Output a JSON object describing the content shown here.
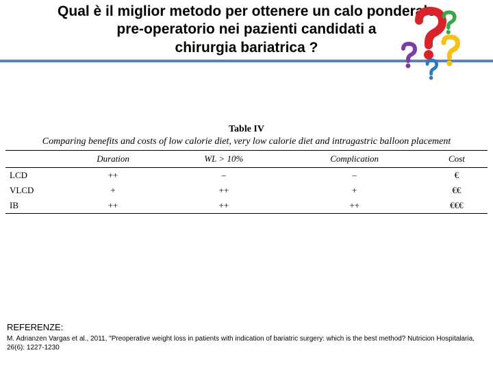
{
  "title": {
    "line1": "Qual è il miglior metodo per ottenere un calo ponderale",
    "line2": "pre-operatorio  nei pazienti candidati a",
    "line3": "chirurgia bariatrica ?"
  },
  "colors": {
    "hr": "#5a82bc",
    "q_red": "#d8232a",
    "q_purple": "#7b3fa1",
    "q_yellow": "#f5c116",
    "q_blue": "#2a7bbf",
    "q_green": "#3da54a"
  },
  "table": {
    "label": "Table IV",
    "caption": "Comparing benefits and costs of low calorie diet, very low calorie diet and intragastric balloon placement",
    "columns": [
      "",
      "Duration",
      "WL > 10%",
      "Complication",
      "Cost"
    ],
    "rows": [
      [
        "LCD",
        "++",
        "–",
        "–",
        "€"
      ],
      [
        "VLCD",
        "+",
        "++",
        "+",
        "€€"
      ],
      [
        "IB",
        "++",
        "++",
        "++",
        "€€€"
      ]
    ],
    "col_widths": [
      "70px",
      "auto",
      "auto",
      "auto",
      "auto"
    ],
    "font_family": "Times New Roman",
    "header_style": "italic",
    "border_color": "#000000"
  },
  "references": {
    "heading": "REFERENZE:",
    "text": "M. Adrianzen Vargas et al., 2011, \"Preoperative weight loss in patients with indication of bariatric surgery: which is the best method? Nutricion Hospitalaria, 26(6): 1227-1230"
  }
}
